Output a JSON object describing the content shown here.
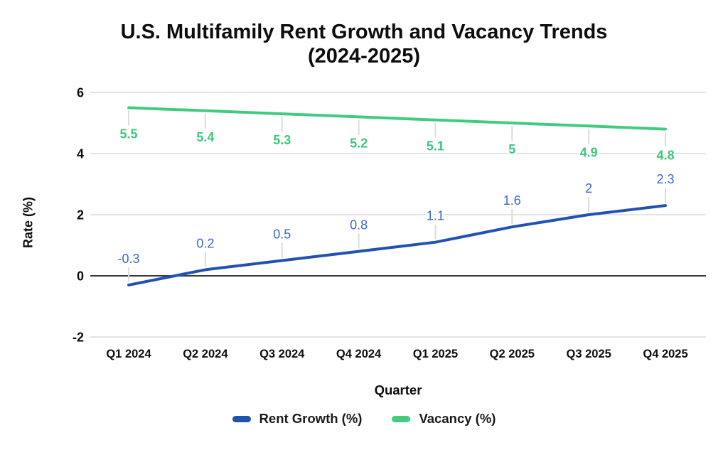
{
  "title": {
    "line1": "U.S. Multifamily Rent Growth and Vacancy Trends",
    "line2": "(2024-2025)"
  },
  "axes": {
    "y_label": "Rate (%)",
    "x_label": "Quarter",
    "y_ticks": [
      6,
      4,
      2,
      0,
      -2
    ]
  },
  "chart_data": {
    "type": "line",
    "title": "U.S. Multifamily Rent Growth and Vacancy Trends (2024-2025)",
    "xlabel": "Quarter",
    "ylabel": "Rate (%)",
    "ylim": [
      -2,
      6
    ],
    "grid": "horizontal",
    "legend_position": "bottom",
    "categories": [
      "Q1 2024",
      "Q2 2024",
      "Q3 2024",
      "Q4 2024",
      "Q1 2025",
      "Q2 2025",
      "Q3 2025",
      "Q4 2025"
    ],
    "series": [
      {
        "name": "Rent Growth (%)",
        "color": "#2152b2",
        "label_color": "#3e68c4",
        "label_weight": "normal",
        "label_side": "above",
        "values": [
          -0.3,
          0.2,
          0.5,
          0.8,
          1.1,
          1.6,
          2,
          2.3
        ]
      },
      {
        "name": "Vacancy (%)",
        "color": "#41cb81",
        "label_color": "#3bc87c",
        "label_weight": "bold",
        "label_side": "below",
        "values": [
          5.5,
          5.4,
          5.3,
          5.2,
          5.1,
          5,
          4.9,
          4.8
        ]
      }
    ]
  },
  "colors": {
    "background": "#ffffff",
    "grid": "#e4e4e4",
    "zero_line": "#3a3a3a",
    "leader": "#dcdcdc",
    "tick_text": "#0d0d0d"
  }
}
